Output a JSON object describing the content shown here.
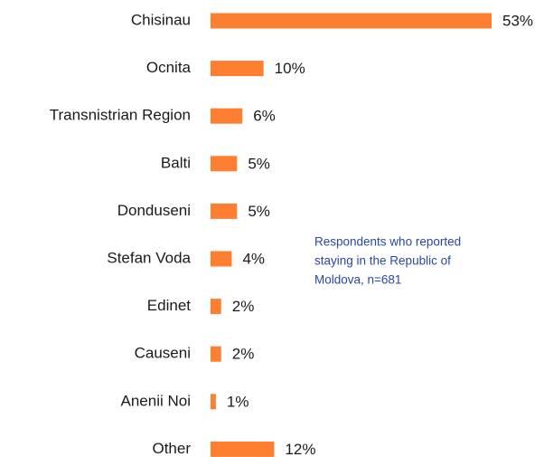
{
  "chart_data": {
    "type": "bar",
    "orientation": "horizontal",
    "categories": [
      "Chisinau",
      "Ocnita",
      "Transnistrian Region",
      "Balti",
      "Donduseni",
      "Stefan Voda",
      "Edinet",
      "Causeni",
      "Anenii Noi",
      "Other"
    ],
    "values": [
      53,
      10,
      6,
      5,
      5,
      4,
      2,
      2,
      1,
      12
    ],
    "value_labels": [
      "53%",
      "10%",
      "6%",
      "5%",
      "5%",
      "4%",
      "2%",
      "2%",
      "1%",
      "12%"
    ],
    "color": "#ff7f32",
    "annotation": [
      "Respondents who reported",
      "staying in the Republic of",
      "Moldova, n=681"
    ]
  }
}
